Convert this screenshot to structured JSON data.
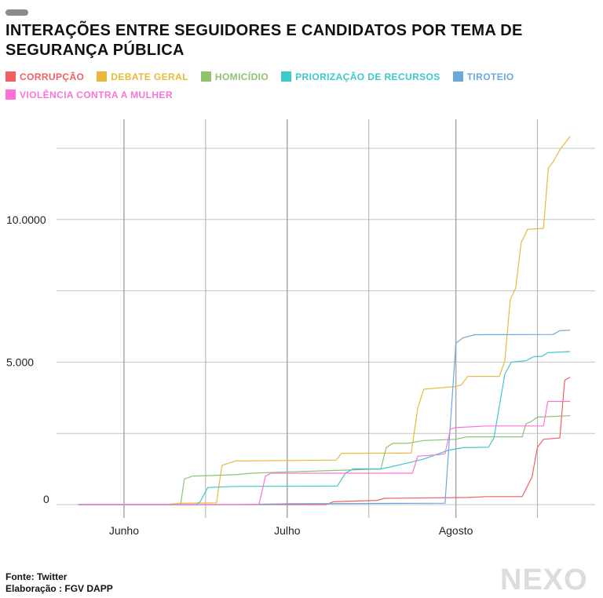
{
  "header": {
    "title": "INTERAÇÕES ENTRE SEGUIDORES E CANDIDATOS POR TEMA DE SEGURANÇA PÚBLICA"
  },
  "footer": {
    "source": "Fonte: Twitter",
    "credit": "Elaboração : FGV DAPP",
    "logo": "NEXO"
  },
  "chart_data": {
    "type": "line",
    "title": "INTERAÇÕES ENTRE SEGUIDORES E CANDIDATOS POR TEMA DE SEGURANÇA PÚBLICA",
    "xlabel": "",
    "ylabel": "",
    "x_unit": "days since June 1",
    "xlim": [
      -12.4,
      86.6
    ],
    "ylim": [
      0,
      12500
    ],
    "x_ticks": [
      {
        "value": 0,
        "label": "Junho"
      },
      {
        "value": 30,
        "label": "Julho"
      },
      {
        "value": 61,
        "label": "Agosto"
      }
    ],
    "x_minor": [
      15,
      45,
      76
    ],
    "y_ticks": [
      {
        "value": 0,
        "label": "0"
      },
      {
        "value": 5000,
        "label": "5.000"
      },
      {
        "value": 10000,
        "label": "10.0000"
      }
    ],
    "y_grid": [
      0,
      2500,
      5000,
      7500,
      10000,
      12500
    ],
    "legend_position": "top-left",
    "series": [
      {
        "name": "CORRUPÇÃO",
        "color": "#f25f64",
        "points": [
          [
            -8.4,
            0
          ],
          [
            37.1,
            0
          ],
          [
            38.5,
            100
          ],
          [
            46.5,
            150
          ],
          [
            47.9,
            220
          ],
          [
            63.1,
            250
          ],
          [
            66.7,
            280
          ],
          [
            73.2,
            280
          ],
          [
            75,
            970
          ],
          [
            76,
            2010
          ],
          [
            77.1,
            2290
          ],
          [
            80.1,
            2340
          ],
          [
            81,
            4360
          ],
          [
            82,
            4470
          ]
        ]
      },
      {
        "name": "DEBATE GERAL",
        "color": "#e8b93a",
        "points": [
          [
            -8.4,
            0
          ],
          [
            7.5,
            0
          ],
          [
            10.4,
            50
          ],
          [
            17,
            60
          ],
          [
            18,
            1380
          ],
          [
            20.5,
            1530
          ],
          [
            39,
            1560
          ],
          [
            40,
            1800
          ],
          [
            52.8,
            1810
          ],
          [
            54,
            3400
          ],
          [
            55.1,
            4050
          ],
          [
            60.9,
            4140
          ],
          [
            62,
            4200
          ],
          [
            63.2,
            4500
          ],
          [
            69,
            4500
          ],
          [
            70,
            5050
          ],
          [
            71,
            7200
          ],
          [
            72,
            7590
          ],
          [
            73,
            9190
          ],
          [
            74.2,
            9660
          ],
          [
            77.1,
            9690
          ],
          [
            78,
            11810
          ],
          [
            78.9,
            12030
          ],
          [
            80.1,
            12450
          ],
          [
            82,
            12920
          ]
        ]
      },
      {
        "name": "HOMICÍDIO",
        "color": "#8dc26f",
        "points": [
          [
            -8.4,
            0
          ],
          [
            10.4,
            0
          ],
          [
            11.1,
            900
          ],
          [
            12.6,
            1000
          ],
          [
            20.5,
            1050
          ],
          [
            23.4,
            1100
          ],
          [
            30.6,
            1150
          ],
          [
            39.2,
            1200
          ],
          [
            47.2,
            1250
          ],
          [
            48.2,
            2000
          ],
          [
            49.4,
            2150
          ],
          [
            52.2,
            2150
          ],
          [
            55.1,
            2250
          ],
          [
            60.9,
            2290
          ],
          [
            63.1,
            2380
          ],
          [
            73.2,
            2380
          ],
          [
            73.9,
            2840
          ],
          [
            74.7,
            2900
          ],
          [
            76,
            3070
          ],
          [
            82,
            3120
          ]
        ]
      },
      {
        "name": "PRIORIZAÇÃO DE RECURSOS",
        "color": "#3ec8c8",
        "points": [
          [
            -8.4,
            0
          ],
          [
            13.3,
            0
          ],
          [
            14,
            100
          ],
          [
            15.4,
            600
          ],
          [
            20.5,
            640
          ],
          [
            39.2,
            650
          ],
          [
            40.7,
            1100
          ],
          [
            42.1,
            1250
          ],
          [
            47.2,
            1250
          ],
          [
            50.8,
            1400
          ],
          [
            55.1,
            1600
          ],
          [
            59.5,
            1900
          ],
          [
            62.3,
            2000
          ],
          [
            67,
            2015
          ],
          [
            68,
            2340
          ],
          [
            70,
            4580
          ],
          [
            71.2,
            5000
          ],
          [
            73.9,
            5050
          ],
          [
            75.3,
            5190
          ],
          [
            76.8,
            5200
          ],
          [
            77.9,
            5330
          ],
          [
            82,
            5370
          ]
        ]
      },
      {
        "name": "TIROTEIO",
        "color": "#6aa8de",
        "points": [
          [
            -8.4,
            0
          ],
          [
            20.5,
            0
          ],
          [
            30.6,
            30
          ],
          [
            59,
            50
          ],
          [
            61,
            5660
          ],
          [
            62.3,
            5850
          ],
          [
            64.5,
            5960
          ],
          [
            78.9,
            5970
          ],
          [
            80.1,
            6100
          ],
          [
            82,
            6120
          ]
        ]
      },
      {
        "name": "VIOLÊNCIA CONTRA A MULHER",
        "color": "#fb73d8",
        "points": [
          [
            -8.4,
            0
          ],
          [
            24.8,
            0
          ],
          [
            26,
            1000
          ],
          [
            27,
            1100
          ],
          [
            53,
            1100
          ],
          [
            54,
            1700
          ],
          [
            58,
            1750
          ],
          [
            59,
            1790
          ],
          [
            60,
            2650
          ],
          [
            60.9,
            2700
          ],
          [
            66.7,
            2760
          ],
          [
            77.1,
            2760
          ],
          [
            77.9,
            3620
          ],
          [
            82,
            3620
          ]
        ]
      }
    ]
  }
}
